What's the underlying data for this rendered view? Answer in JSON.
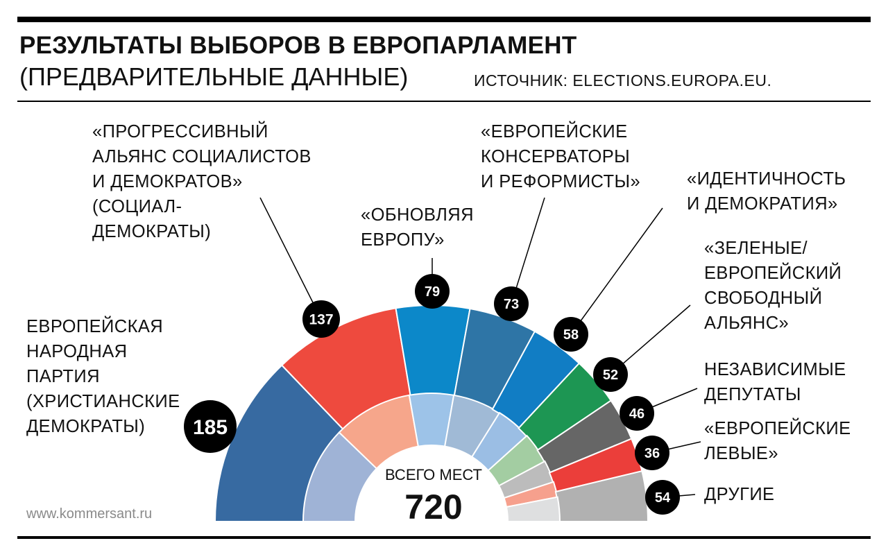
{
  "header": {
    "title": "РЕЗУЛЬТАТЫ ВЫБОРОВ В ЕВРОПАРЛАМЕНТ",
    "subtitle": "(ПРЕДВАРИТЕЛЬНЫЕ ДАННЫЕ)",
    "source": "ИСТОЧНИК: ELECTIONS.EUROPA.EU."
  },
  "footer": {
    "site": "www.kommersant.ru"
  },
  "chart_data": {
    "type": "pie",
    "subtype": "semicircle-parliament",
    "title": "РЕЗУЛЬТАТЫ ВЫБОРОВ В ЕВРОПАРЛАМЕНТ",
    "total_label": "ВСЕГО МЕСТ",
    "total": 720,
    "series": [
      {
        "key": "epp",
        "lines": [
          "ЕВРОПЕЙСКАЯ",
          "НАРОДНАЯ",
          "ПАРТИЯ",
          "(ХРИСТИАНСКИЕ",
          "ДЕМОКРАТЫ)"
        ],
        "value": 185,
        "inner_share": 176,
        "color": "#376aa1",
        "light": "#9fb3d6"
      },
      {
        "key": "sd",
        "lines": [
          "«ПРОГРЕССИВНЫЙ",
          "АЛЬЯНС СОЦИАЛИСТОВ",
          "И ДЕМОКРАТОВ»",
          "(СОЦИАЛ-",
          "ДЕМОКРАТЫ)"
        ],
        "value": 137,
        "inner_share": 144,
        "color": "#ee4a3e",
        "light": "#f6a68b"
      },
      {
        "key": "renew",
        "lines": [
          "«ОБНОВЛЯЯ",
          "ЕВРОПУ»"
        ],
        "value": 79,
        "inner_share": 80,
        "color": "#0c88c9",
        "light": "#9dc3e8"
      },
      {
        "key": "ecr",
        "lines": [
          "«ЕВРОПЕЙСКИЕ",
          "КОНСЕРВАТОРЫ",
          "И РЕФОРМИСТЫ»"
        ],
        "value": 73,
        "inner_share": 88,
        "color": "#2e75a6",
        "light": "#a0bad6"
      },
      {
        "key": "id",
        "lines": [
          "«ИДЕНТИЧНОСТЬ",
          "И ДЕМОКРАТИЯ»"
        ],
        "value": 58,
        "inner_share": 64,
        "color": "#117dc4",
        "light": "#9bbee4"
      },
      {
        "key": "greens",
        "lines": [
          "«ЗЕЛЕНЫЕ/",
          "ЕВРОПЕЙСКИЙ",
          "СВОБОДНЫЙ",
          "АЛЬЯНС»"
        ],
        "value": 52,
        "inner_share": 56,
        "color": "#1d9653",
        "light": "#a3cda2"
      },
      {
        "key": "ni",
        "lines": [
          "НЕЗАВИСИМЫЕ",
          "ДЕПУТАТЫ"
        ],
        "value": 46,
        "inner_share": 40,
        "color": "#666666",
        "light": "#bcbcbc"
      },
      {
        "key": "left",
        "lines": [
          "«ЕВРОПЕЙСКИЕ",
          "ЛЕВЫЕ»"
        ],
        "value": 36,
        "inner_share": 28,
        "color": "#eb3e3a",
        "light": "#f6a08d"
      },
      {
        "key": "others",
        "lines": [
          "ДРУГИЕ"
        ],
        "value": 54,
        "inner_share": 44,
        "color": "#b1b1b1",
        "light": "#dedfe0"
      }
    ]
  }
}
